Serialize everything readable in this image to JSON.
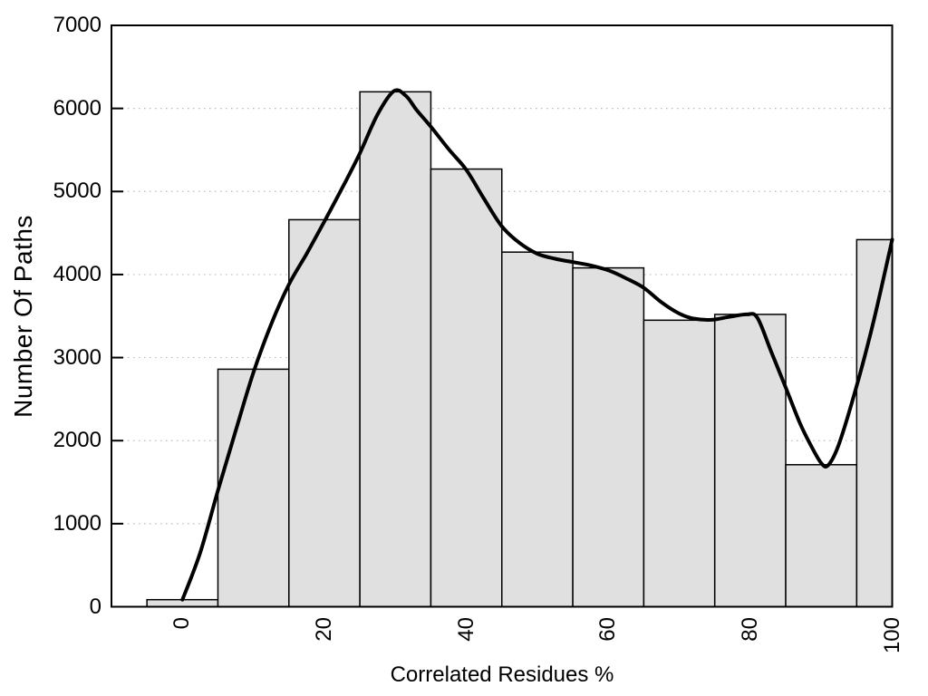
{
  "chart_data": {
    "type": "histogram",
    "title": "",
    "xlabel": "Correlated Residues %",
    "ylabel": "Number Of Paths",
    "xlim": [
      -10,
      100
    ],
    "ylim": [
      0,
      7000
    ],
    "x_ticks": [
      0,
      20,
      40,
      60,
      80,
      100
    ],
    "y_ticks": [
      0,
      1000,
      2000,
      3000,
      4000,
      5000,
      6000,
      7000
    ],
    "grid": "horizontal-dotted",
    "legend": "none",
    "bars": [
      {
        "x0": -5,
        "x1": 5,
        "value": 85
      },
      {
        "x0": 5,
        "x1": 15,
        "value": 2860
      },
      {
        "x0": 15,
        "x1": 25,
        "value": 4660
      },
      {
        "x0": 25,
        "x1": 35,
        "value": 6200
      },
      {
        "x0": 35,
        "x1": 45,
        "value": 5270
      },
      {
        "x0": 45,
        "x1": 55,
        "value": 4270
      },
      {
        "x0": 55,
        "x1": 65,
        "value": 4080
      },
      {
        "x0": 65,
        "x1": 75,
        "value": 3450
      },
      {
        "x0": 75,
        "x1": 85,
        "value": 3520
      },
      {
        "x0": 85,
        "x1": 95,
        "value": 1710
      },
      {
        "x0": 95,
        "x1": 100,
        "value": 4420
      }
    ],
    "curve": [
      [
        0,
        85
      ],
      [
        2.5,
        650
      ],
      [
        5,
        1400
      ],
      [
        7.5,
        2120
      ],
      [
        10,
        2820
      ],
      [
        12.5,
        3400
      ],
      [
        15,
        3880
      ],
      [
        17.5,
        4250
      ],
      [
        20,
        4640
      ],
      [
        22.5,
        5040
      ],
      [
        25,
        5460
      ],
      [
        27.5,
        5930
      ],
      [
        29.8,
        6210
      ],
      [
        31.5,
        6150
      ],
      [
        33,
        5980
      ],
      [
        35,
        5780
      ],
      [
        37.5,
        5510
      ],
      [
        40,
        5260
      ],
      [
        42.5,
        4910
      ],
      [
        45,
        4580
      ],
      [
        47.5,
        4380
      ],
      [
        50,
        4250
      ],
      [
        52.5,
        4190
      ],
      [
        55,
        4150
      ],
      [
        57.5,
        4110
      ],
      [
        60,
        4050
      ],
      [
        62.5,
        3955
      ],
      [
        65,
        3840
      ],
      [
        67.5,
        3665
      ],
      [
        70,
        3530
      ],
      [
        72,
        3470
      ],
      [
        74.5,
        3455
      ],
      [
        77,
        3490
      ],
      [
        79.5,
        3520
      ],
      [
        81,
        3480
      ],
      [
        83,
        3060
      ],
      [
        85,
        2640
      ],
      [
        87,
        2210
      ],
      [
        88.5,
        1950
      ],
      [
        90,
        1730
      ],
      [
        91,
        1705
      ],
      [
        92.5,
        1960
      ],
      [
        95,
        2660
      ],
      [
        97.5,
        3480
      ],
      [
        100,
        4420
      ]
    ],
    "colors": {
      "background": "#ffffff",
      "bar_fill": "#e0e0e0",
      "bar_stroke": "#000000",
      "curve": "#000000",
      "grid": "#bbbbbb",
      "border": "#000000",
      "text": "#000000"
    }
  }
}
